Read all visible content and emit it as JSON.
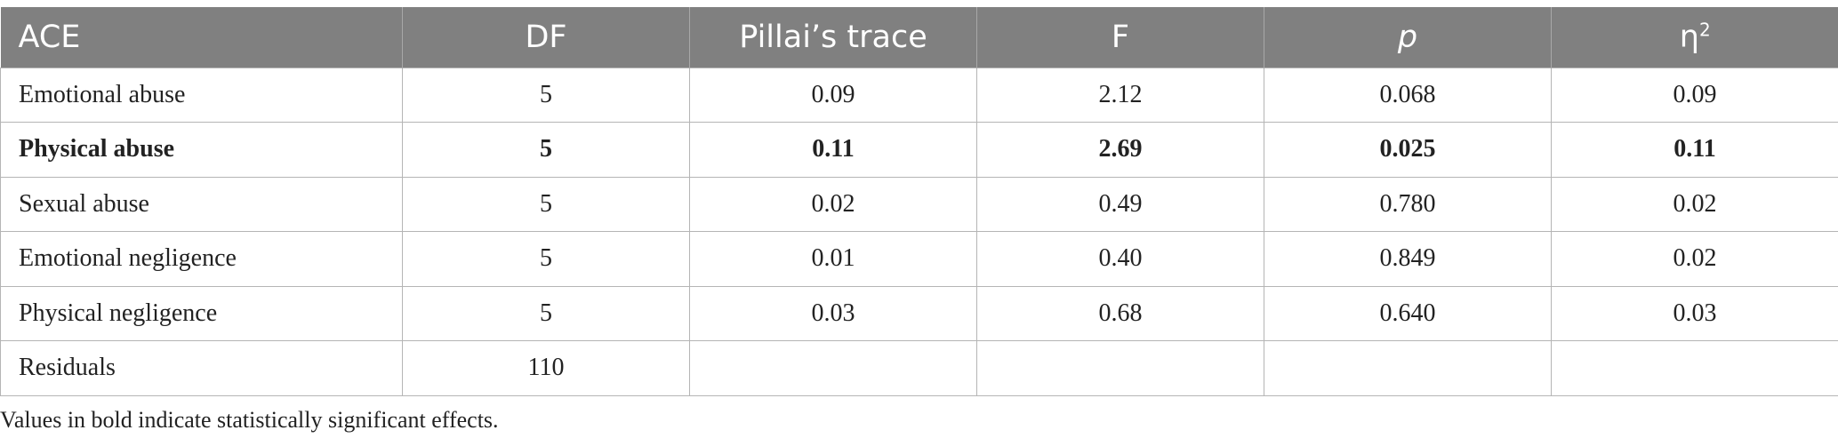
{
  "table": {
    "headers": [
      "ACE",
      "DF",
      "Pillai’s trace",
      "F",
      "p",
      "η"
    ],
    "eta_superscript": "2",
    "rows": [
      {
        "label": "Emotional abuse",
        "df": "5",
        "pillai": "0.09",
        "f": "2.12",
        "p": "0.068",
        "eta2": "0.09",
        "bold": false
      },
      {
        "label": "Physical abuse",
        "df": "5",
        "pillai": "0.11",
        "f": "2.69",
        "p": "0.025",
        "eta2": "0.11",
        "bold": true
      },
      {
        "label": "Sexual abuse",
        "df": "5",
        "pillai": "0.02",
        "f": "0.49",
        "p": "0.780",
        "eta2": "0.02",
        "bold": false
      },
      {
        "label": "Emotional negligence",
        "df": "5",
        "pillai": "0.01",
        "f": "0.40",
        "p": "0.849",
        "eta2": "0.02",
        "bold": false
      },
      {
        "label": "Physical negligence",
        "df": "5",
        "pillai": "0.03",
        "f": "0.68",
        "p": "0.640",
        "eta2": "0.03",
        "bold": false
      },
      {
        "label": "Residuals",
        "df": "110",
        "pillai": "",
        "f": "",
        "p": "",
        "eta2": "",
        "bold": false
      }
    ]
  },
  "footnote": "Values in bold indicate statistically significant effects.",
  "colors": {
    "header_background": "#808080",
    "header_text": "#ffffff",
    "border": "#b5b5b5"
  }
}
